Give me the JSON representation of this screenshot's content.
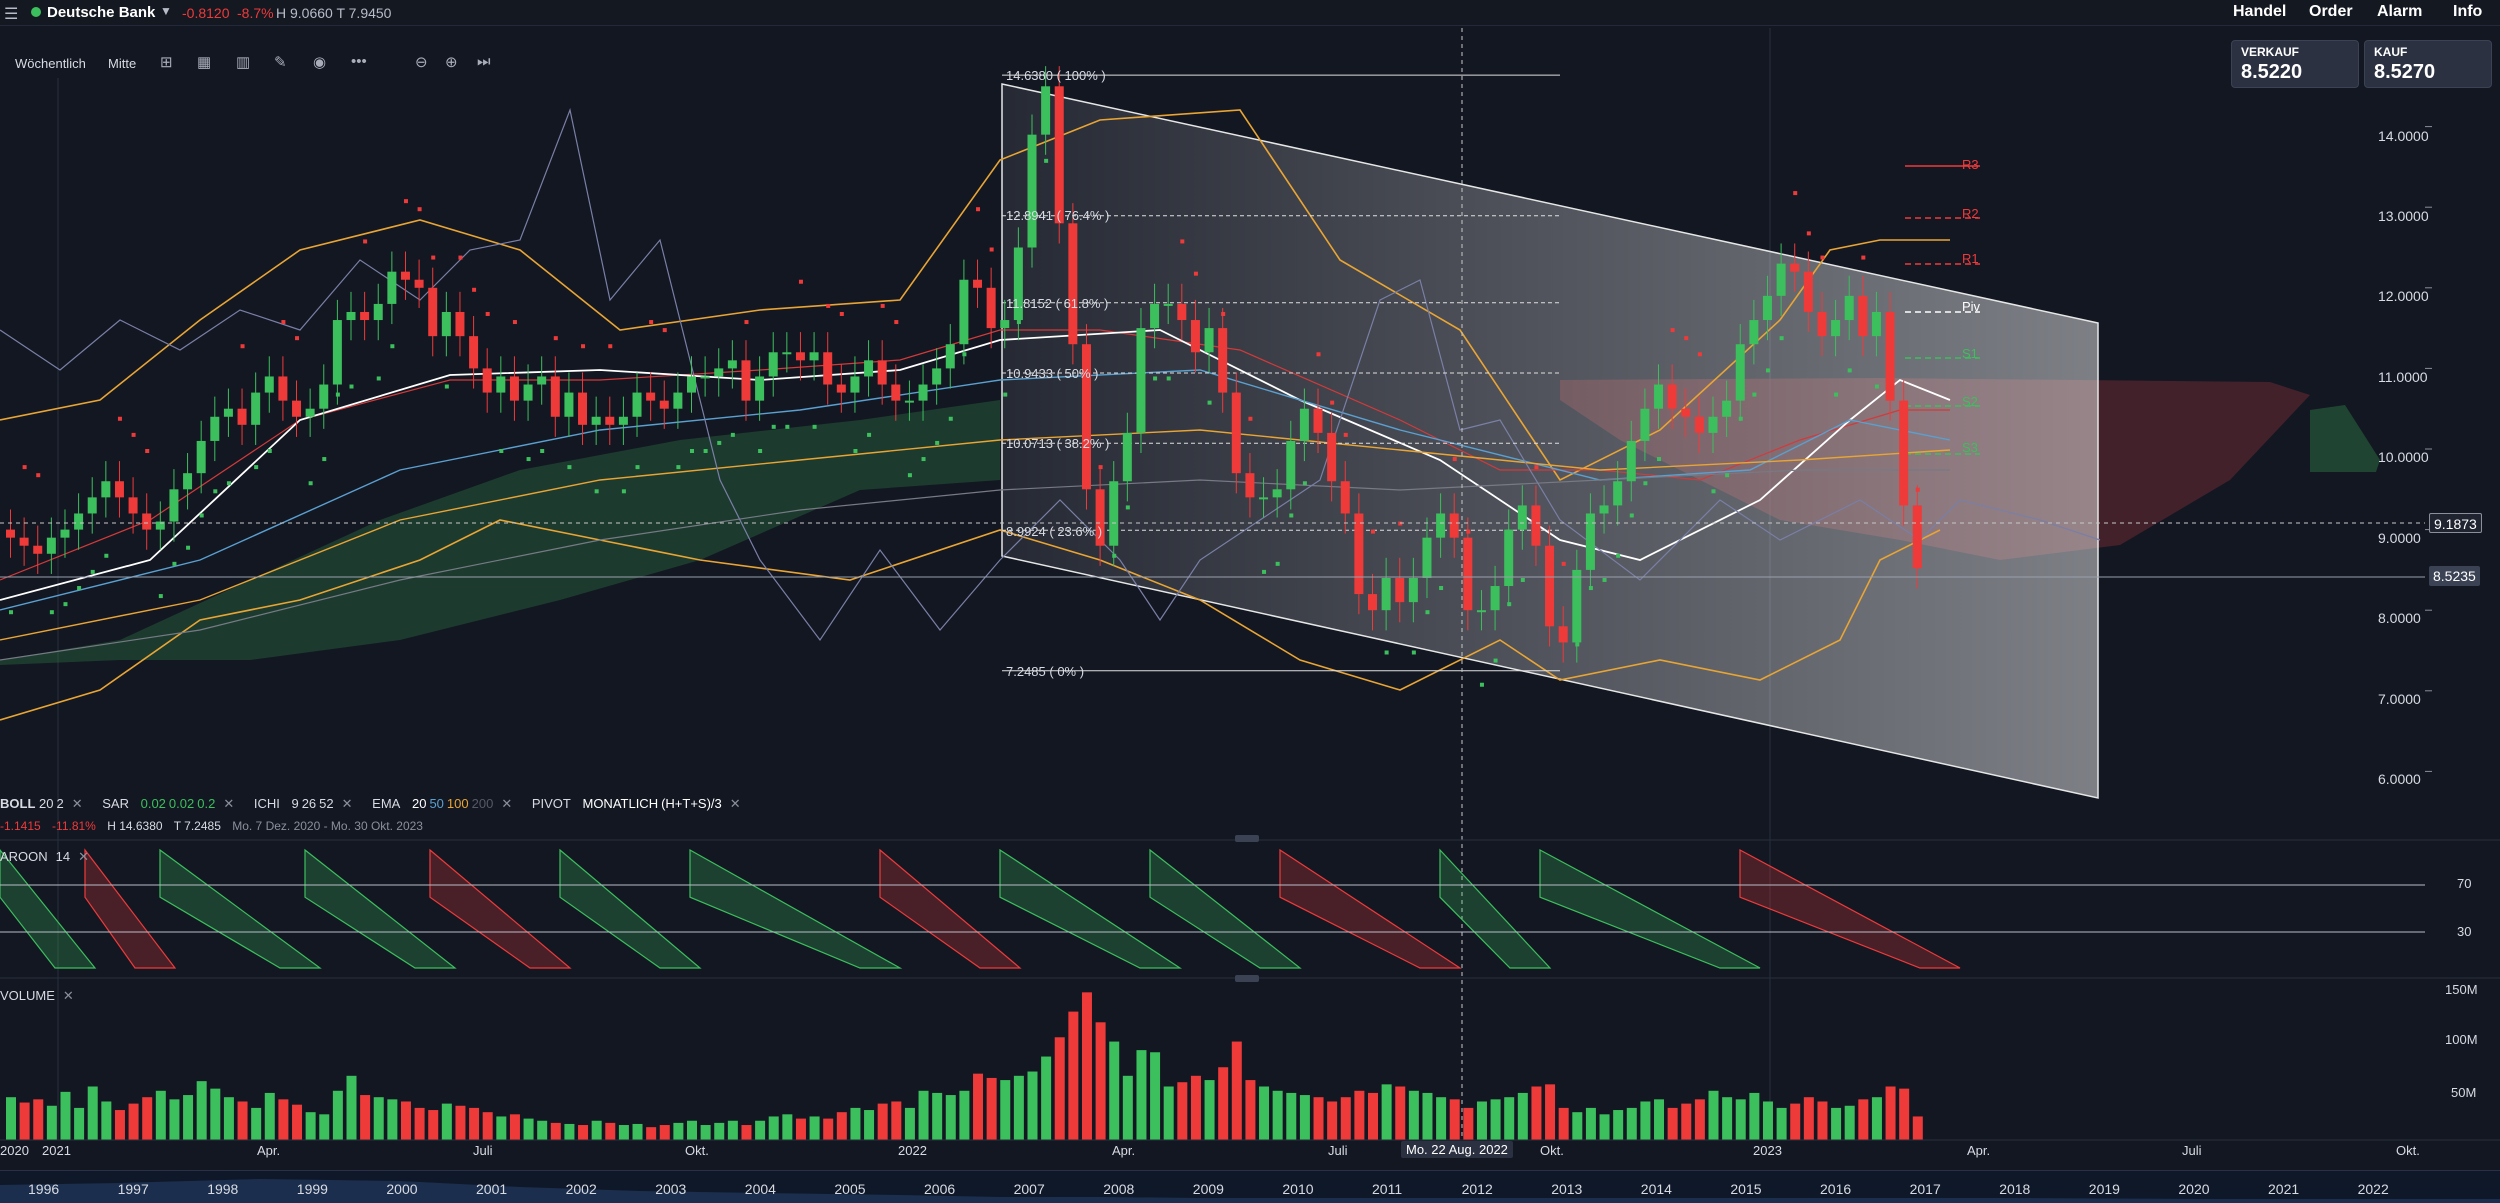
{
  "topbar": {
    "instrument": "Deutsche Bank",
    "change": "-0.8120",
    "change_pct": "-8.7%",
    "high_low": "H 9.0660  T 7.9450",
    "menu": [
      "Handel",
      "Order",
      "Alarm",
      "Info"
    ]
  },
  "toolbar": {
    "period": "Wöchentlich",
    "mode": "Mitte",
    "icons": [
      "compare-icon",
      "calendar-icon",
      "indicator-icon",
      "draw-icon",
      "eye-icon",
      "more-icon",
      "zoom-out-icon",
      "zoom-in-icon",
      "play-end-icon"
    ]
  },
  "quotes": {
    "sell_label": "VERKAUF",
    "sell_value": "8.5220",
    "buy_label": "KAUF",
    "buy_value": "8.5270"
  },
  "price_axis": [
    "14.0000",
    "13.0000",
    "12.0000",
    "11.0000",
    "10.0000",
    "9.0000",
    "8.0000",
    "7.0000",
    "6.0000"
  ],
  "price_tags": {
    "crosshair": "9.1873",
    "last": "8.5235"
  },
  "fibonacci": [
    "14.6380 ( 100% )",
    "12.8941 ( 76.4% )",
    "11.8152 ( 61.8% )",
    "10.9433 ( 50% )",
    "10.0713 ( 38.2% )",
    "8.9924 ( 23.6% )",
    "7.2485 ( 0% )"
  ],
  "pivots": [
    "R3",
    "R2",
    "R1",
    "Piv",
    "S1",
    "S2",
    "S3"
  ],
  "legend": {
    "boll": {
      "name": "BOLL",
      "p1": "20",
      "p2": "2"
    },
    "sar": {
      "name": "SAR",
      "p1": "0.02",
      "p2": "0.02",
      "p3": "0.2"
    },
    "ichi": {
      "name": "ICHI",
      "p1": "9",
      "p2": "26",
      "p3": "52"
    },
    "ema": {
      "name": "EMA",
      "p1": "20",
      "p2": "50",
      "p3": "100",
      "p4": "200"
    },
    "pivot": {
      "name": "PIVOT",
      "p1": "MONATLICH",
      "p2": "(H+T+S)/3"
    },
    "range_change": "-1.1415",
    "range_pct": "-11.81%",
    "range_high": "H 14.6380",
    "range_low": "T 7.2485",
    "range_dates": "Mo. 7 Dez. 2020 - Mo. 30 Okt. 2023"
  },
  "aroon": {
    "name": "AROON",
    "period": "14",
    "levels": [
      "70",
      "30"
    ]
  },
  "volume": {
    "name": "VOLUME",
    "levels": [
      "150M",
      "100M",
      "50M"
    ]
  },
  "time_axis": {
    "labels": [
      "2020",
      "2021",
      "Apr.",
      "Juli",
      "Okt.",
      "2022",
      "Apr.",
      "Juli",
      "Okt.",
      "2023",
      "Apr.",
      "Juli",
      "Okt."
    ],
    "crosshair": "Mo. 22 Aug. 2022"
  },
  "navigator_years": [
    "1996",
    "1997",
    "1998",
    "1999",
    "2000",
    "2001",
    "2002",
    "2003",
    "2004",
    "2005",
    "2006",
    "2007",
    "2008",
    "2009",
    "2010",
    "2011",
    "2012",
    "2013",
    "2014",
    "2015",
    "2016",
    "2017",
    "2018",
    "2019",
    "2020",
    "2021",
    "2022"
  ],
  "colors": {
    "up": "#3cbf5d",
    "down": "#ef3a3a",
    "background": "#131722"
  },
  "chart_data": {
    "type": "candlestick",
    "title": "Deutsche Bank",
    "interval": "Wöchentlich",
    "ylim": [
      5.7,
      14.7
    ],
    "closes": [
      8.9,
      8.8,
      8.7,
      8.9,
      9.0,
      9.2,
      9.4,
      9.6,
      9.4,
      9.2,
      9.0,
      9.1,
      9.5,
      9.7,
      10.1,
      10.4,
      10.5,
      10.3,
      10.7,
      10.9,
      10.6,
      10.4,
      10.5,
      10.8,
      11.6,
      11.7,
      11.6,
      11.8,
      12.2,
      12.1,
      12.0,
      11.4,
      11.7,
      11.4,
      11.0,
      10.7,
      10.9,
      10.6,
      10.8,
      10.9,
      10.4,
      10.7,
      10.3,
      10.4,
      10.3,
      10.4,
      10.7,
      10.6,
      10.5,
      10.7,
      10.9,
      10.9,
      11.0,
      11.1,
      10.6,
      10.9,
      11.2,
      11.2,
      11.1,
      11.2,
      10.8,
      10.7,
      10.9,
      11.1,
      10.8,
      10.6,
      10.6,
      10.8,
      11.0,
      11.3,
      12.1,
      12.0,
      11.5,
      11.6,
      12.5,
      13.9,
      14.5,
      12.8,
      11.3,
      9.5,
      8.8,
      9.6,
      10.2,
      11.5,
      11.8,
      11.8,
      11.6,
      11.2,
      11.5,
      10.7,
      9.7,
      9.4,
      9.4,
      9.5,
      10.1,
      10.5,
      10.2,
      9.6,
      9.2,
      8.2,
      8.0,
      8.4,
      8.1,
      8.4,
      8.9,
      9.2,
      8.9,
      8.0,
      8.0,
      8.3,
      9.0,
      9.3,
      8.8,
      7.8,
      7.6,
      8.5,
      9.2,
      9.3,
      9.6,
      10.1,
      10.5,
      10.8,
      10.5,
      10.4,
      10.2,
      10.4,
      10.6,
      11.3,
      11.6,
      11.9,
      12.3,
      12.2,
      11.7,
      11.4,
      11.6,
      11.9,
      11.4,
      11.7,
      10.6,
      9.3,
      8.52
    ],
    "volume_millions": [
      40,
      35,
      38,
      32,
      45,
      30,
      50,
      36,
      28,
      34,
      40,
      46,
      38,
      42,
      55,
      48,
      40,
      36,
      30,
      44,
      38,
      33,
      26,
      24,
      46,
      60,
      42,
      40,
      38,
      36,
      30,
      28,
      34,
      32,
      30,
      26,
      22,
      24,
      20,
      18,
      16,
      15,
      14,
      18,
      16,
      14,
      15,
      12,
      14,
      16,
      18,
      14,
      16,
      18,
      14,
      18,
      22,
      24,
      20,
      22,
      20,
      26,
      30,
      28,
      34,
      36,
      30,
      46,
      44,
      42,
      46,
      62,
      58,
      56,
      60,
      64,
      78,
      96,
      120,
      138,
      110,
      92,
      60,
      84,
      82,
      50,
      54,
      60,
      56,
      68,
      92,
      56,
      50,
      46,
      44,
      42,
      40,
      36,
      40,
      46,
      44,
      52,
      50,
      46,
      44,
      40,
      38,
      30,
      36,
      38,
      40,
      44,
      50,
      52,
      30,
      26,
      30,
      24,
      28,
      30,
      36,
      38,
      30,
      34,
      38,
      46,
      40,
      38,
      44,
      36,
      30,
      34,
      40,
      36,
      30,
      32,
      38,
      40,
      50,
      48,
      22
    ]
  }
}
